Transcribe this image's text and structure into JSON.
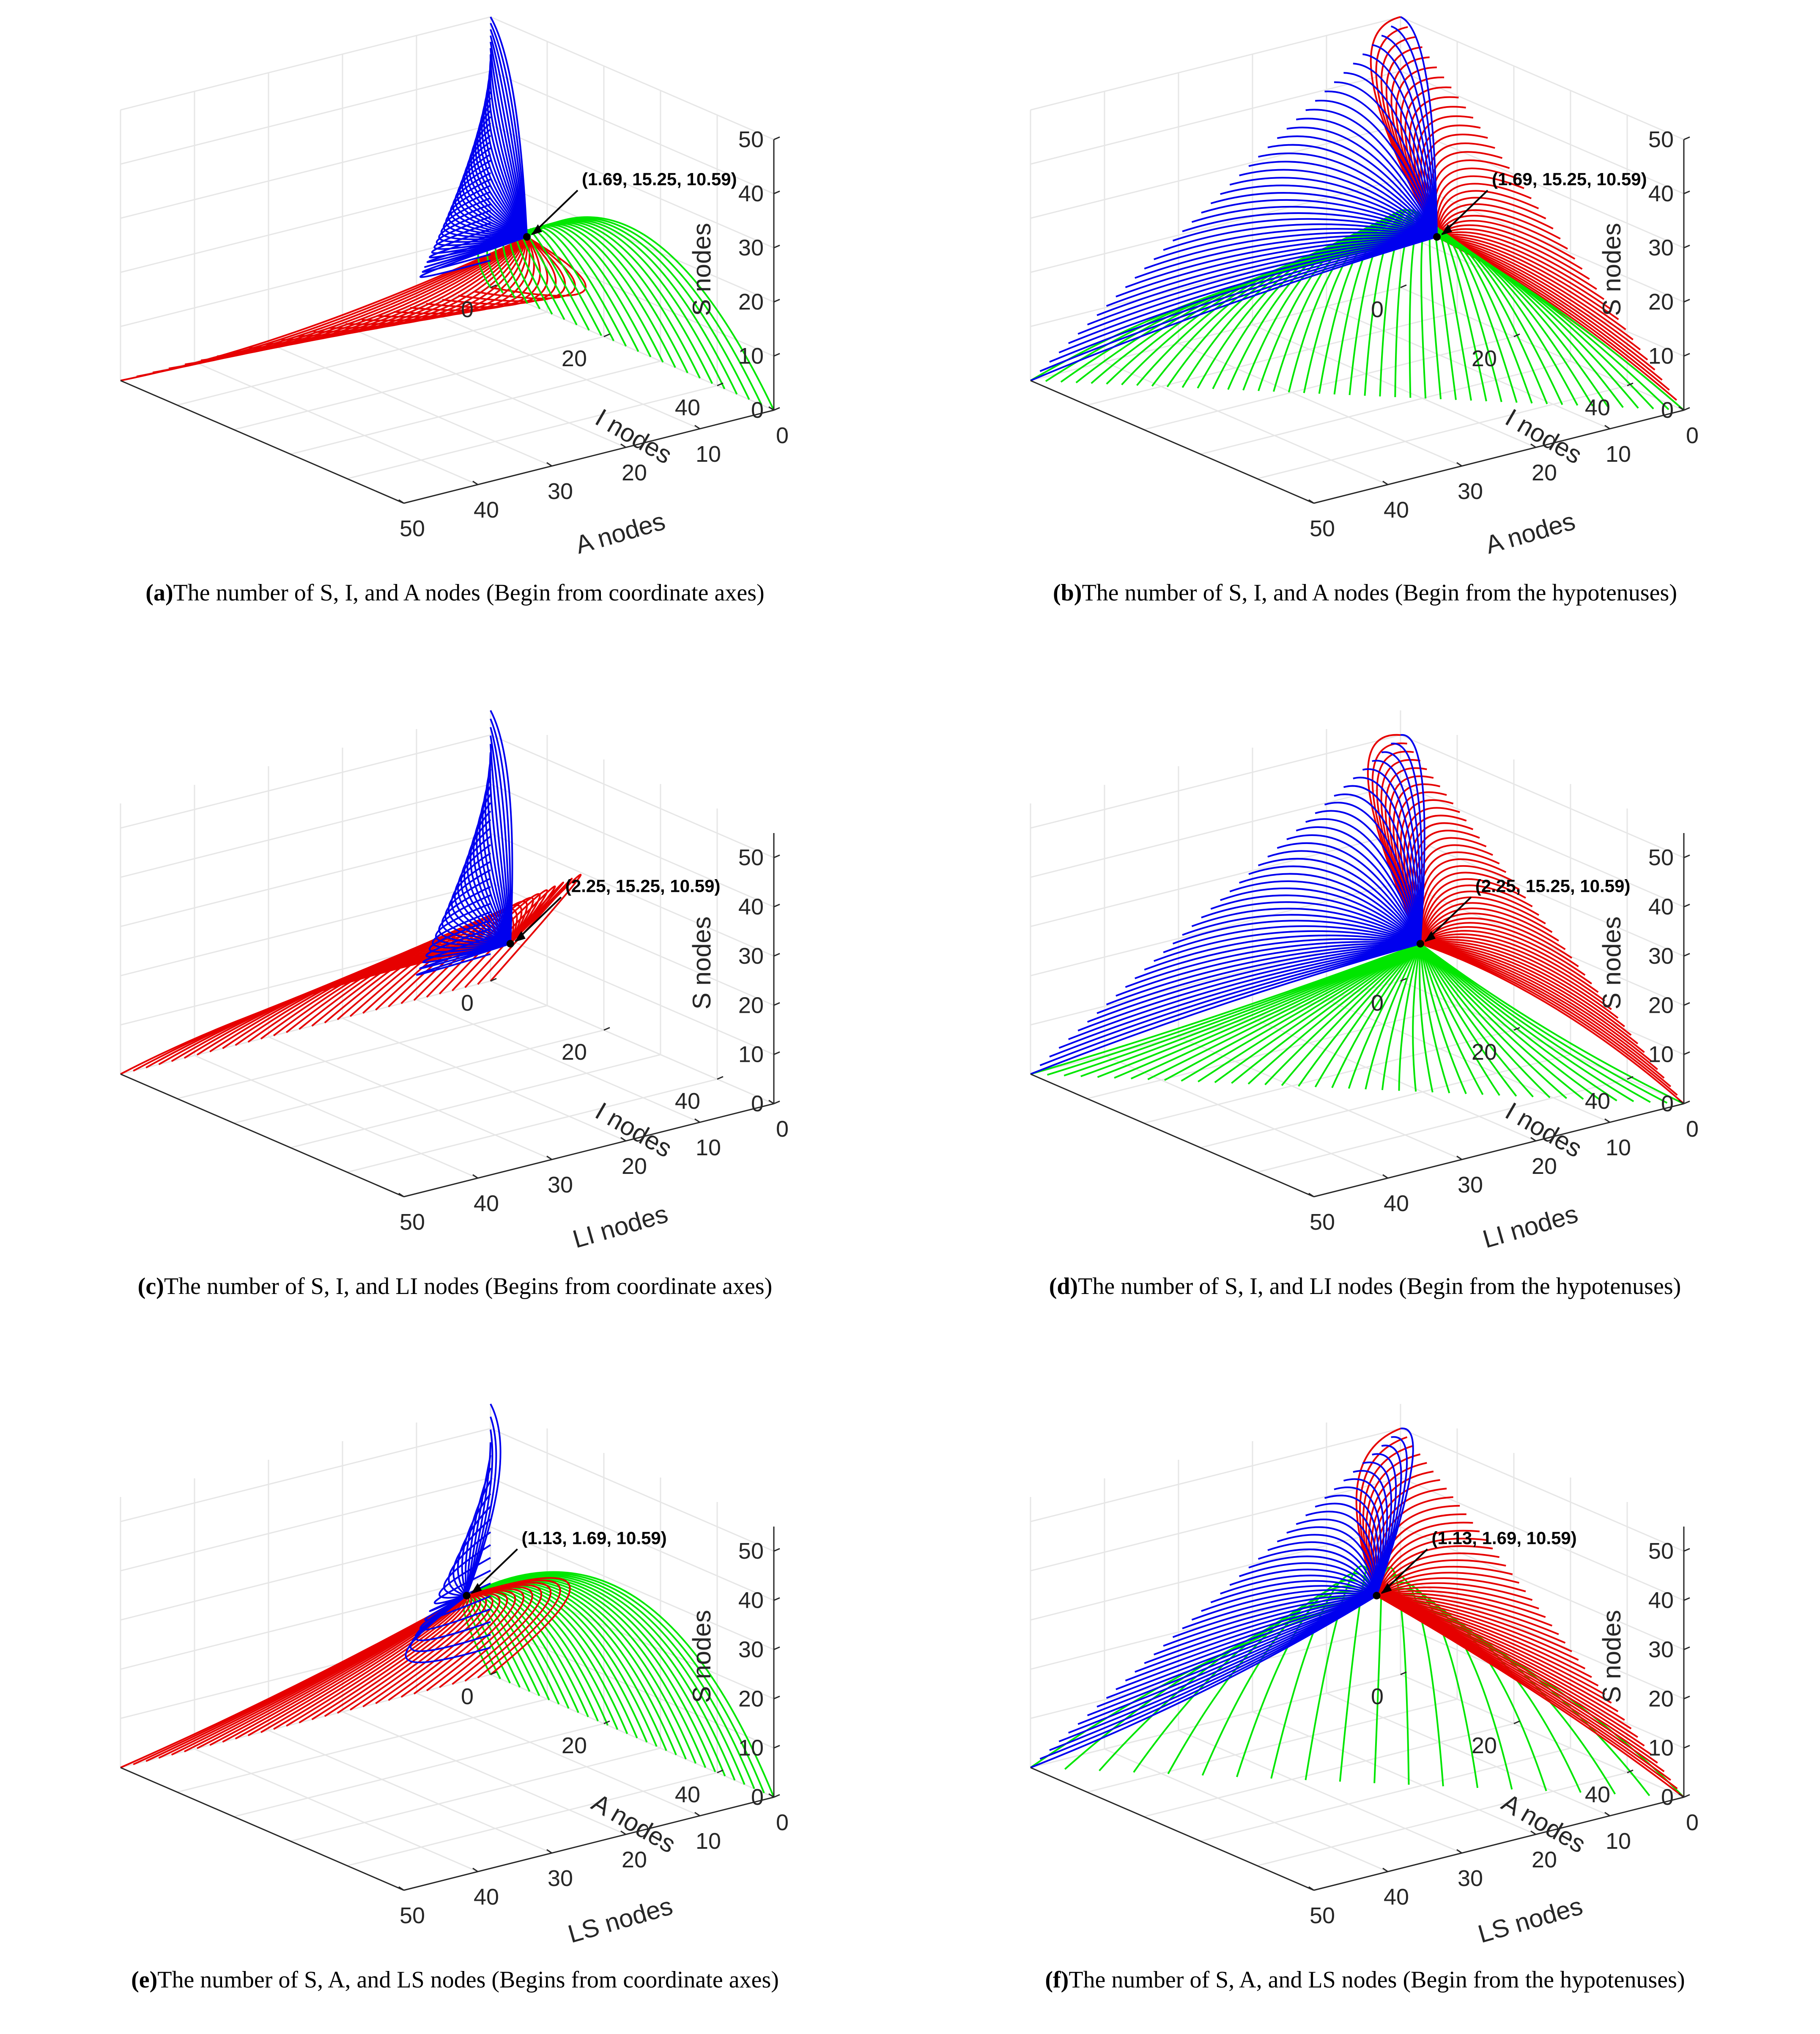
{
  "figure": {
    "palette": {
      "red": "#e60000",
      "green": "#00e600",
      "blue": "#0000ee",
      "axis": "#262626",
      "grid": "#e6e6e6"
    },
    "panels": [
      {
        "id": "a",
        "caption_letter": "(a)",
        "caption_text": "The number of S, I, and A nodes (Begin from coordinate axes)",
        "chart_data": {
          "type": "line",
          "projection": "3d",
          "title": "",
          "xlabel": "A nodes",
          "ylabel": "I nodes",
          "zlabel": "S nodes",
          "xlim": [
            0,
            50
          ],
          "ylim": [
            0,
            50
          ],
          "zlim": [
            0,
            50
          ],
          "xticks": [
            "0",
            "10",
            "20",
            "30",
            "40",
            "50"
          ],
          "yticks": [
            "0",
            "20",
            "40"
          ],
          "zticks": [
            "0",
            "10",
            "20",
            "30",
            "40",
            "50"
          ],
          "grid": true,
          "equilibrium": {
            "A": 1.69,
            "I": 15.25,
            "S": 10.59
          },
          "annotation": "(1.69, 15.25, 10.59)",
          "series": [
            {
              "name": "red trajectories (start on S = 0 plane)",
              "color": "red",
              "count": 24,
              "start": "S = 0 plane",
              "peak_S": 8
            },
            {
              "name": "green trajectories (start on A = 0 axis plane)",
              "color": "green",
              "count": 24,
              "start": "A = 0 plane",
              "peak_S": 42
            },
            {
              "name": "blue trajectories (start on I = 0 plane)",
              "color": "blue",
              "count": 40,
              "start": "I = 0 plane",
              "peak_S": 50
            }
          ]
        }
      },
      {
        "id": "b",
        "caption_letter": "(b)",
        "caption_text": "The number of S, I, and A nodes (Begin from the hypotenuses)",
        "chart_data": {
          "type": "line",
          "projection": "3d",
          "title": "",
          "xlabel": "A nodes",
          "ylabel": "I nodes",
          "zlabel": "S nodes",
          "xlim": [
            0,
            50
          ],
          "ylim": [
            0,
            50
          ],
          "zlim": [
            0,
            50
          ],
          "xticks": [
            "0",
            "10",
            "20",
            "30",
            "40",
            "50"
          ],
          "yticks": [
            "0",
            "20",
            "40"
          ],
          "zticks": [
            "0",
            "10",
            "20",
            "30",
            "40",
            "50"
          ],
          "grid": true,
          "equilibrium": {
            "A": 1.69,
            "I": 15.25,
            "S": 10.59
          },
          "annotation": "(1.69, 15.25, 10.59)",
          "series": [
            {
              "name": "red trajectories",
              "color": "red",
              "count": 40,
              "start": "S + I = 50 line",
              "peak_S": 50
            },
            {
              "name": "green trajectories",
              "color": "green",
              "count": 44,
              "start": "I + A = 50 line",
              "peak_S": 38
            },
            {
              "name": "blue trajectories",
              "color": "blue",
              "count": 40,
              "start": "S + A = 50 line",
              "peak_S": 50
            }
          ]
        }
      },
      {
        "id": "c",
        "caption_letter": "(c)",
        "caption_text": "The number of S, I, and LI nodes (Begins from coordinate axes)",
        "chart_data": {
          "type": "line",
          "projection": "3d",
          "title": "",
          "xlabel": "LI nodes",
          "ylabel": "I nodes",
          "zlabel": "S nodes",
          "xlim": [
            0,
            50
          ],
          "ylim": [
            0,
            50
          ],
          "zlim": [
            0,
            55
          ],
          "xticks": [
            "0",
            "10",
            "20",
            "30",
            "40",
            "50"
          ],
          "yticks": [
            "0",
            "20",
            "40"
          ],
          "zticks": [
            "0",
            "10",
            "20",
            "30",
            "40",
            "50"
          ],
          "grid": true,
          "equilibrium": {
            "LI": 2.25,
            "I": 15.25,
            "S": 10.59
          },
          "annotation": "(2.25, 15.25, 10.59)",
          "series": [
            {
              "name": "red trajectories",
              "color": "red",
              "count": 30,
              "start": "LI = 0 plane",
              "peak_S": 54
            },
            {
              "name": "blue trajectories",
              "color": "blue",
              "count": 30,
              "start": "I = 0 plane",
              "peak_S": 54
            }
          ]
        }
      },
      {
        "id": "d",
        "caption_letter": "(d)",
        "caption_text": "The number of S, I, and LI nodes (Begin from the hypotenuses)",
        "chart_data": {
          "type": "line",
          "projection": "3d",
          "title": "",
          "xlabel": "LI nodes",
          "ylabel": "I nodes",
          "zlabel": "S nodes",
          "xlim": [
            0,
            50
          ],
          "ylim": [
            0,
            50
          ],
          "zlim": [
            0,
            55
          ],
          "xticks": [
            "0",
            "10",
            "20",
            "30",
            "40",
            "50"
          ],
          "yticks": [
            "0",
            "20",
            "40"
          ],
          "zticks": [
            "0",
            "10",
            "20",
            "30",
            "40",
            "50"
          ],
          "grid": true,
          "equilibrium": {
            "LI": 2.25,
            "I": 15.25,
            "S": 10.59
          },
          "annotation": "(2.25, 15.25, 10.59)",
          "series": [
            {
              "name": "red trajectories",
              "color": "red",
              "count": 44,
              "start": "S + I = 50 line",
              "peak_S": 55
            },
            {
              "name": "green trajectories",
              "color": "green",
              "count": 40,
              "start": "I + LI = 50 line",
              "peak_S": 5
            },
            {
              "name": "blue trajectories",
              "color": "blue",
              "count": 40,
              "start": "S + LI = 50 line",
              "peak_S": 55
            }
          ]
        }
      },
      {
        "id": "e",
        "caption_letter": "(e)",
        "caption_text": "The number of S, A, and LS nodes (Begins from coordinate axes)",
        "chart_data": {
          "type": "line",
          "projection": "3d",
          "title": "",
          "xlabel": "LS nodes",
          "ylabel": "A nodes",
          "zlabel": "S nodes",
          "xlim": [
            0,
            50
          ],
          "ylim": [
            0,
            50
          ],
          "zlim": [
            0,
            55
          ],
          "xticks": [
            "0",
            "10",
            "20",
            "30",
            "40",
            "50"
          ],
          "yticks": [
            "0",
            "20",
            "40"
          ],
          "zticks": [
            "0",
            "10",
            "20",
            "30",
            "40",
            "50"
          ],
          "grid": true,
          "equilibrium": {
            "LS": 1.13,
            "A": 1.69,
            "S": 10.59
          },
          "annotation": "(1.13, 1.69, 10.59)",
          "series": [
            {
              "name": "green trajectories",
              "color": "green",
              "count": 30,
              "start": "LS = 0 plane",
              "peak_S": 55
            },
            {
              "name": "red trajectories",
              "color": "red",
              "count": 30,
              "start": "A = 0 plane",
              "peak_S": 43
            },
            {
              "name": "blue trajectories",
              "color": "blue",
              "count": 20,
              "start": "near S axis",
              "peak_S": 55
            }
          ]
        }
      },
      {
        "id": "f",
        "caption_letter": "(f)",
        "caption_text": "The number of S, A, and LS nodes (Begin from the hypotenuses)",
        "chart_data": {
          "type": "line",
          "projection": "3d",
          "title": "",
          "xlabel": "LS nodes",
          "ylabel": "A nodes",
          "zlabel": "S nodes",
          "xlim": [
            0,
            50
          ],
          "ylim": [
            0,
            50
          ],
          "zlim": [
            0,
            55
          ],
          "xticks": [
            "0",
            "10",
            "20",
            "30",
            "40",
            "50"
          ],
          "yticks": [
            "0",
            "20",
            "40"
          ],
          "zticks": [
            "0",
            "10",
            "20",
            "30",
            "40",
            "50"
          ],
          "grid": true,
          "equilibrium": {
            "LS": 1.13,
            "A": 1.69,
            "S": 10.59
          },
          "annotation": "(1.13, 1.69, 10.59)",
          "series": [
            {
              "name": "green trajectories",
              "color": "green",
              "count": 20,
              "start": "S + A = 50 line",
              "peak_S": 55
            },
            {
              "name": "red trajectories",
              "color": "red",
              "count": 44,
              "start": "A + LS = 50 line",
              "peak_S": 48
            },
            {
              "name": "blue trajectories",
              "color": "blue",
              "count": 40,
              "start": "S + LS = 50 line",
              "peak_S": 55
            }
          ]
        }
      }
    ]
  }
}
